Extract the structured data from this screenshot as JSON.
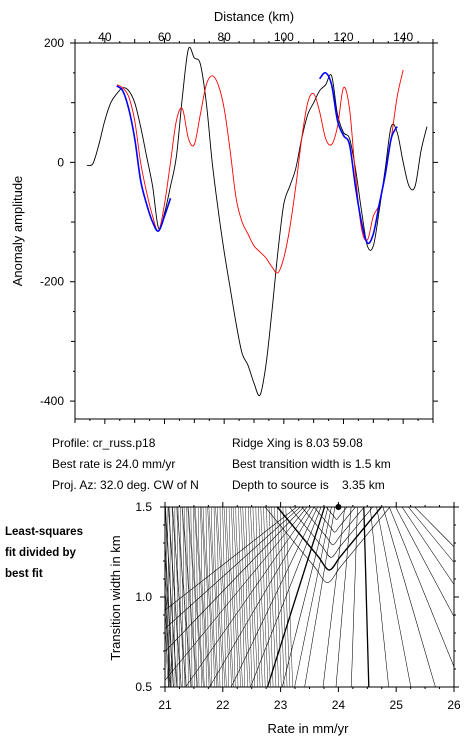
{
  "chart_data": [
    {
      "type": "line",
      "xlabel": "Distance (km)",
      "ylabel": "Anomaly amplitude",
      "xlim": [
        30,
        150
      ],
      "ylim": [
        -430,
        200
      ],
      "xticks": [
        40,
        60,
        80,
        100,
        120,
        140
      ],
      "yticks": [
        200,
        0,
        -200,
        -400
      ],
      "grid": false,
      "colors": {
        "observed": "#000000",
        "model": "#ff0000",
        "fit": "#0000ff"
      },
      "series": [
        {
          "role": "observed",
          "color": "#000000",
          "x": [
            34,
            36,
            38,
            40,
            42,
            44,
            46,
            48,
            50,
            52,
            54,
            56,
            58,
            60,
            62,
            64,
            66,
            68,
            70,
            72,
            74,
            76,
            78,
            80,
            82,
            84,
            86,
            88,
            90,
            92,
            94,
            96,
            98,
            100,
            102,
            104,
            106,
            108,
            110,
            112,
            114,
            116,
            118,
            120,
            122,
            124,
            126,
            128,
            130,
            132,
            134,
            136,
            138,
            140,
            142,
            144,
            146,
            148
          ],
          "y": [
            -5,
            -2,
            30,
            70,
            100,
            115,
            125,
            120,
            100,
            60,
            10,
            -40,
            -110,
            -85,
            -40,
            10,
            110,
            190,
            175,
            165,
            100,
            0,
            -80,
            -150,
            -210,
            -270,
            -320,
            -340,
            -370,
            -390,
            -340,
            -250,
            -150,
            -70,
            -40,
            -10,
            40,
            80,
            100,
            120,
            130,
            145,
            80,
            50,
            40,
            -10,
            -80,
            -140,
            -140,
            -80,
            -10,
            60,
            50,
            0,
            -40,
            -40,
            20,
            60
          ]
        },
        {
          "role": "model",
          "color": "#ff0000",
          "x": [
            44,
            46,
            48,
            50,
            52,
            54,
            56,
            58,
            60,
            62,
            64,
            66,
            68,
            70,
            72,
            74,
            76,
            78,
            80,
            82,
            84,
            86,
            88,
            90,
            92,
            94,
            96,
            98,
            100,
            102,
            104,
            106,
            108,
            110,
            112,
            114,
            116,
            118,
            120,
            122,
            124,
            126,
            128,
            130,
            132,
            134,
            136,
            138,
            140
          ],
          "y": [
            130,
            125,
            110,
            70,
            0,
            -50,
            -90,
            -115,
            -70,
            0,
            70,
            90,
            40,
            30,
            80,
            130,
            145,
            130,
            90,
            20,
            -60,
            -100,
            -120,
            -140,
            -150,
            -160,
            -175,
            -185,
            -160,
            -110,
            -40,
            40,
            100,
            115,
            85,
            40,
            30,
            60,
            125,
            90,
            -20,
            -110,
            -130,
            -90,
            -70,
            -20,
            40,
            110,
            155
          ]
        },
        {
          "role": "fit",
          "color": "#0000ff",
          "x": [
            44,
            46,
            48,
            50,
            52,
            54,
            56,
            58,
            60,
            62
          ],
          "y": [
            128,
            120,
            90,
            40,
            -30,
            -70,
            -100,
            -115,
            -90,
            -60
          ]
        },
        {
          "role": "fit",
          "color": "#0000ff",
          "x": [
            112,
            114,
            116,
            118,
            120,
            122,
            124,
            126,
            128,
            130,
            132,
            134,
            136,
            138
          ],
          "y": [
            140,
            150,
            130,
            70,
            45,
            30,
            -40,
            -100,
            -135,
            -120,
            -70,
            -20,
            40,
            60
          ]
        }
      ]
    },
    {
      "type": "contour",
      "xlabel": "Rate in mm/yr",
      "ylabel": "Transition width in km",
      "xlim": [
        21,
        26
      ],
      "ylim": [
        0.5,
        1.5
      ],
      "xticks": [
        21,
        22,
        23,
        24,
        25,
        26
      ],
      "yticks": [
        0.5,
        1.0,
        1.5
      ],
      "minimum": {
        "x": 24.0,
        "y": 1.5
      },
      "note": [
        "Least-squares",
        "fit divided by",
        "best fit"
      ]
    }
  ],
  "info": {
    "profile": "Profile: cr_russ.p18",
    "best_rate": "Best rate is 24.0 mm/yr",
    "proj_az": "Proj. Az: 32.0 deg. CW of N",
    "ridge_xing": "Ridge Xing is 8.03 59.08",
    "best_width": "Best transition width is 1.5 km",
    "depth": "Depth to source is    3.35 km"
  }
}
